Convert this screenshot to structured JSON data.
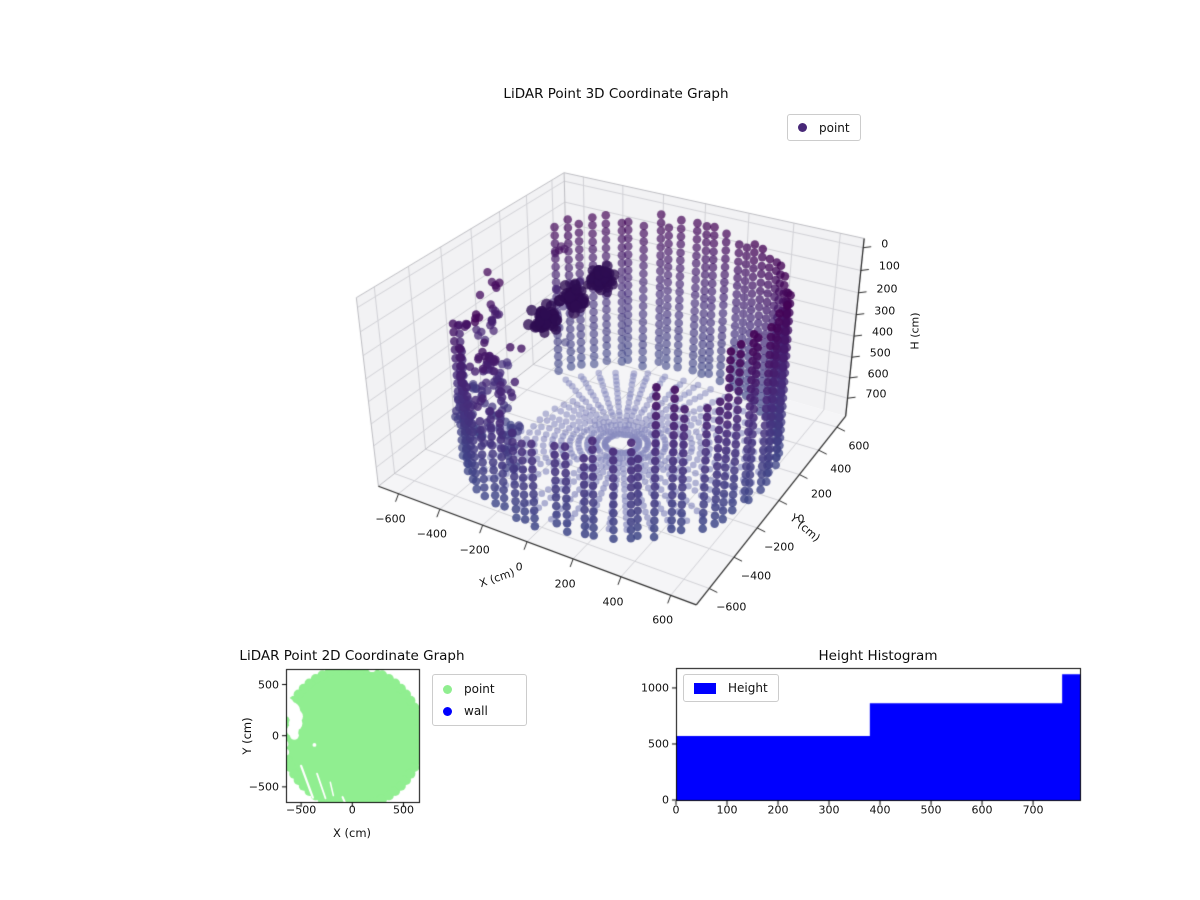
{
  "figure": {
    "background": "#ffffff"
  },
  "plot3d": {
    "title": "LiDAR Point 3D Coordinate Graph",
    "legend": {
      "label": "point",
      "marker_color": "#482878"
    },
    "xlabel": "X (cm)",
    "ylabel": "Y (cm)",
    "zlabel": "H (cm)",
    "xticks": [
      -600,
      -400,
      -200,
      0,
      200,
      400,
      600
    ],
    "yticks": [
      -600,
      -400,
      -200,
      0,
      200,
      400,
      600
    ],
    "zticks": [
      0,
      100,
      200,
      300,
      400,
      500,
      600,
      700
    ]
  },
  "plot2d": {
    "title": "LiDAR Point 2D Coordinate Graph",
    "xlabel": "X (cm)",
    "ylabel": "Y (cm)",
    "xticks": [
      -500,
      0,
      500
    ],
    "yticks": [
      500,
      0,
      -500
    ],
    "legend": [
      {
        "label": "point",
        "color": "#90ee90"
      },
      {
        "label": "wall",
        "color": "#0000ff"
      }
    ]
  },
  "histogram": {
    "title": "Height Histogram",
    "legend": {
      "label": "Height",
      "color": "#0000ff"
    },
    "xticks": [
      0,
      100,
      200,
      300,
      400,
      500,
      600,
      700
    ],
    "yticks": [
      0,
      500,
      1000
    ]
  },
  "chart_data": [
    {
      "id": "lidar-3d",
      "type": "scatter",
      "projection": "3d",
      "title": "LiDAR Point 3D Coordinate Graph",
      "xlabel": "X (cm)",
      "ylabel": "Y (cm)",
      "zlabel": "H (cm)",
      "xlim": [
        -700,
        700
      ],
      "ylim": [
        -700,
        700
      ],
      "zlim": [
        0,
        790
      ],
      "zaxis_inverted": true,
      "grid": true,
      "legend_position": "upper right",
      "series": [
        {
          "name": "point",
          "colormap": [
            "#440154",
            "#472d7b",
            "#3f4889"
          ],
          "point_structure": {
            "cylinder_wall_radius_cm": 625,
            "wall_height_range_cm": [
              0,
              760
            ],
            "wall_gap_angle_deg": [
              148,
              205
            ],
            "floor_height_cm": 757,
            "floor_spoke_count": 48,
            "floor_spoke_radius_cm": [
              70,
              585
            ],
            "cluster_centers_xy_cm": [
              [
                -180,
                150
              ],
              [
                -240,
                40
              ],
              [
                -300,
                -90
              ]
            ],
            "cluster_height_cm": [
              90,
              280
            ],
            "scatter_sector_deg": [
              190,
              250
            ]
          }
        }
      ]
    },
    {
      "id": "lidar-2d",
      "type": "scatter",
      "title": "LiDAR Point 2D Coordinate Graph",
      "xlabel": "X (cm)",
      "ylabel": "Y (cm)",
      "xlim": [
        -650,
        650
      ],
      "ylim": [
        -650,
        650
      ],
      "series": [
        {
          "name": "point",
          "color": "#90ee90",
          "shape": "filled disk of overlapping markers, radius ~700 cm, clipped by axes",
          "notch_xy_cm": [
            [
              -650,
              290
            ],
            [
              -588,
              248
            ],
            [
              -552,
              188
            ],
            [
              -554,
              118
            ],
            [
              -582,
              52
            ],
            [
              -566,
              4
            ],
            [
              -662,
              -82
            ],
            [
              -650,
              -162
            ],
            [
              -370,
              -90
            ],
            [
              193,
              662
            ]
          ],
          "ray_gaps": [
            [
              [
                -500,
                -295
              ],
              [
                -385,
                -605
              ]
            ],
            [
              [
                -345,
                -370
              ],
              [
                -262,
                -612
              ]
            ],
            [
              [
                -215,
                -455
              ],
              [
                -185,
                -585
              ]
            ],
            [
              [
                -95,
                -600
              ],
              [
                -72,
                -652
              ]
            ]
          ]
        },
        {
          "name": "wall",
          "color": "#0000ff",
          "visible_points": 0
        }
      ]
    },
    {
      "id": "height-histogram",
      "type": "bar",
      "title": "Height Histogram",
      "bin_edges": [
        0,
        380,
        757,
        792
      ],
      "counts": [
        572,
        863,
        1122
      ],
      "xlim": [
        0,
        792
      ],
      "ylim": [
        0,
        1178
      ],
      "bar_color": "#0000ff"
    }
  ]
}
